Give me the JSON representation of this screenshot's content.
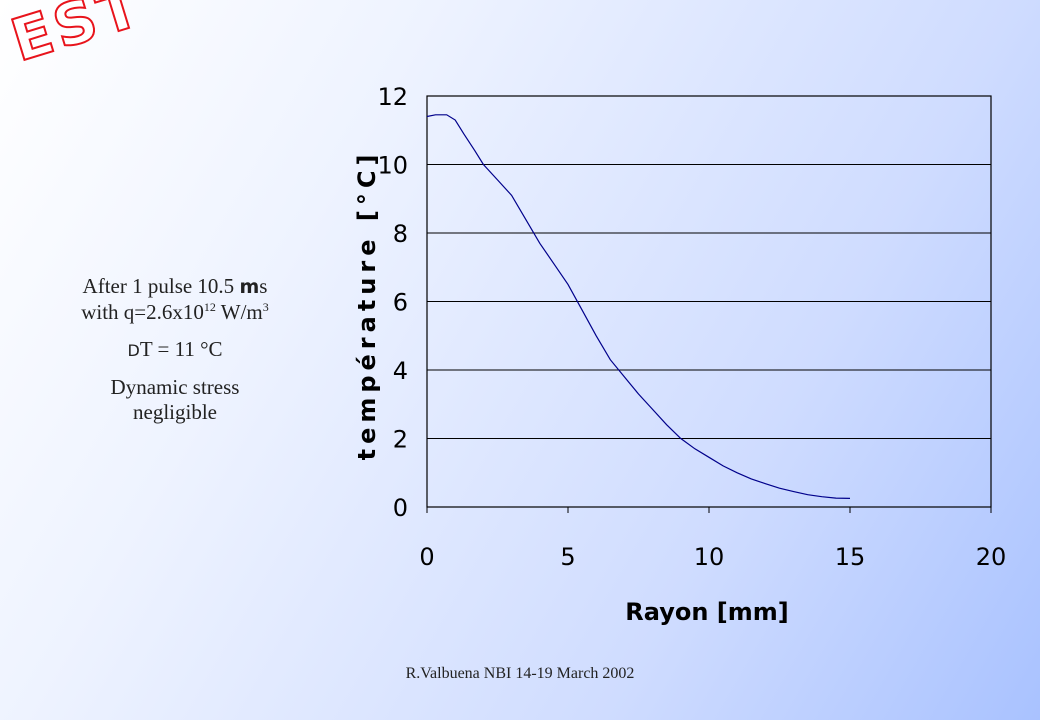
{
  "logo_text": "EST",
  "notes": {
    "line1": "After 1 pulse 10.5 ",
    "mu_symbol": "m",
    "line1_unit": "s",
    "line2_prefix": "with q=2.6x10",
    "line2_exp": "12",
    "line2_unit": " W/m",
    "line2_exp2": "3",
    "delta_symbol": "D",
    "delta_text": "T = 11 °C",
    "stress_line1": "Dynamic stress",
    "stress_line2": "negligible"
  },
  "footer": "R.Valbuena NBI 14-19 March 2002",
  "colors": {
    "logo": "#e8141c",
    "curve": "#00008b",
    "grid": "#000000"
  },
  "chart_data": {
    "type": "line",
    "title": "",
    "xlabel": "Rayon [mm]",
    "ylabel": "température [°C]",
    "xlim": [
      0,
      20
    ],
    "ylim": [
      0,
      12
    ],
    "xticks": [
      "0",
      "5",
      "10",
      "15",
      "20"
    ],
    "yticks": [
      "0",
      "2",
      "4",
      "6",
      "8",
      "10",
      "12"
    ],
    "grid": "horizontal",
    "series": [
      {
        "x": [
          0,
          0.3,
          0.7,
          1.0,
          1.3,
          1.7,
          2.0,
          2.5,
          3.0,
          3.5,
          4.0,
          4.5,
          5.0,
          5.5,
          6.0,
          6.5,
          7.0,
          7.5,
          8.0,
          8.5,
          9.0,
          9.5,
          10.0,
          10.5,
          11.0,
          11.5,
          12.0,
          12.5,
          13.0,
          13.5,
          14.0,
          14.5,
          15.0
        ],
        "y": [
          11.4,
          11.45,
          11.45,
          11.3,
          10.9,
          10.4,
          10.0,
          9.55,
          9.1,
          8.4,
          7.7,
          7.1,
          6.5,
          5.75,
          5.0,
          4.3,
          3.8,
          3.3,
          2.85,
          2.4,
          2.0,
          1.7,
          1.45,
          1.2,
          1.0,
          0.82,
          0.68,
          0.55,
          0.45,
          0.36,
          0.3,
          0.26,
          0.25
        ]
      }
    ]
  }
}
